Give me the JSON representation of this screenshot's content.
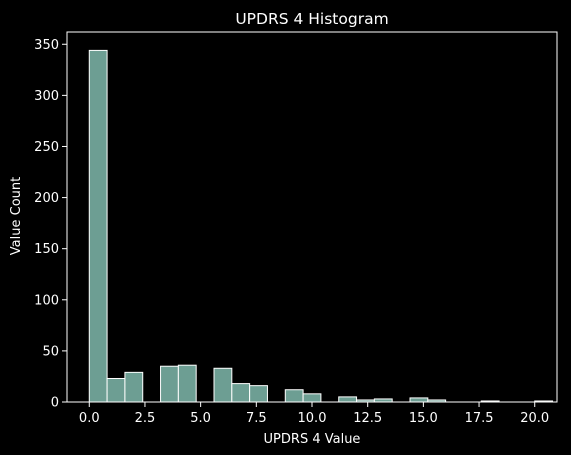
{
  "colors": {
    "background": "#000000",
    "bar_fill": "#6d9e93",
    "bar_edge": "#ffffff",
    "axis": "#ffffff",
    "text": "#ffffff"
  },
  "chart_data": {
    "type": "bar",
    "title": "UPDRS 4 Histogram",
    "xlabel": "UPDRS 4 Value",
    "ylabel": "Value Count",
    "xlim": [
      -1.0,
      21.0
    ],
    "ylim": [
      0,
      362
    ],
    "grid": false,
    "x_ticks": [
      0.0,
      2.5,
      5.0,
      7.5,
      10.0,
      12.5,
      15.0,
      17.5,
      20.0
    ],
    "x_tick_labels": [
      "0.0",
      "2.5",
      "5.0",
      "7.5",
      "10.0",
      "12.5",
      "15.0",
      "17.5",
      "20.0"
    ],
    "y_ticks": [
      0,
      50,
      100,
      150,
      200,
      250,
      300,
      350
    ],
    "y_tick_labels": [
      "0",
      "50",
      "100",
      "150",
      "200",
      "250",
      "300",
      "350"
    ],
    "bin_width": 0.8,
    "bins": [
      {
        "start": 0.0,
        "count": 344
      },
      {
        "start": 0.8,
        "count": 23
      },
      {
        "start": 1.6,
        "count": 29
      },
      {
        "start": 2.4,
        "count": 0
      },
      {
        "start": 3.2,
        "count": 35
      },
      {
        "start": 4.0,
        "count": 36
      },
      {
        "start": 4.8,
        "count": 0
      },
      {
        "start": 5.6,
        "count": 33
      },
      {
        "start": 6.4,
        "count": 18
      },
      {
        "start": 7.2,
        "count": 16
      },
      {
        "start": 8.0,
        "count": 0
      },
      {
        "start": 8.8,
        "count": 12
      },
      {
        "start": 9.6,
        "count": 8
      },
      {
        "start": 10.4,
        "count": 0
      },
      {
        "start": 11.2,
        "count": 5
      },
      {
        "start": 12.0,
        "count": 2
      },
      {
        "start": 12.8,
        "count": 3
      },
      {
        "start": 13.6,
        "count": 0
      },
      {
        "start": 14.4,
        "count": 4
      },
      {
        "start": 15.2,
        "count": 2
      },
      {
        "start": 16.0,
        "count": 0
      },
      {
        "start": 16.8,
        "count": 0
      },
      {
        "start": 17.6,
        "count": 1
      },
      {
        "start": 18.4,
        "count": 0
      },
      {
        "start": 19.2,
        "count": 0
      },
      {
        "start": 20.0,
        "count": 1
      }
    ]
  }
}
